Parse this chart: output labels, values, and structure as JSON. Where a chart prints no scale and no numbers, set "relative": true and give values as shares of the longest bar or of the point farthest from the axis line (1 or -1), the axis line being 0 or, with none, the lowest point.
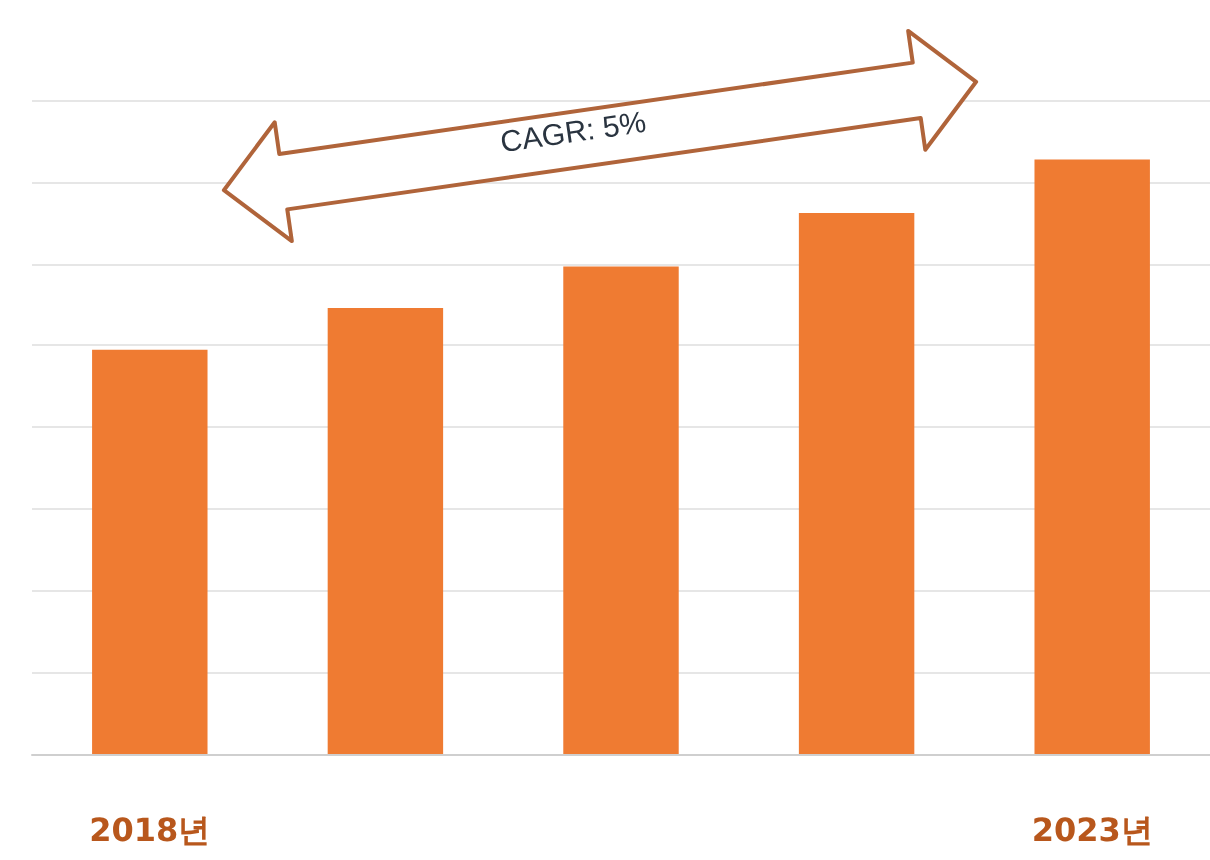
{
  "chart_data": {
    "type": "bar",
    "relative": true,
    "categories": [
      "2018년",
      null,
      null,
      null,
      "2023년"
    ],
    "values": [
      0.68,
      0.75,
      0.82,
      0.91,
      1
    ],
    "color": "#ef7b32",
    "grid": "y",
    "annotations": [
      "CAGR: 5%"
    ]
  }
}
